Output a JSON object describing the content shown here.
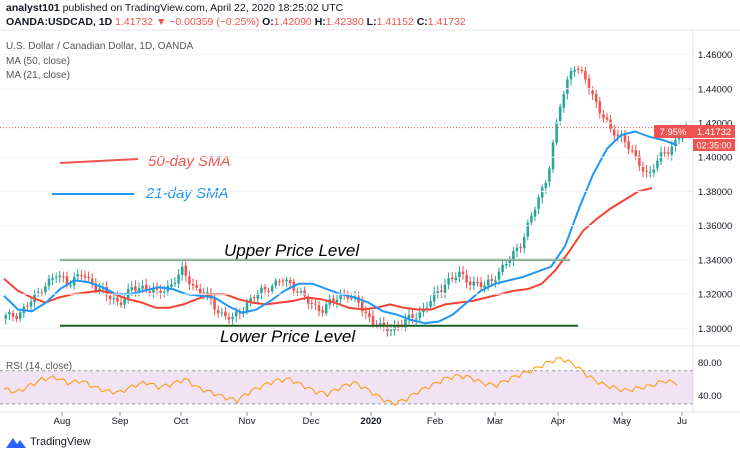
{
  "header": {
    "author": "analyst101",
    "published_text": "published on TradingView.com, April 22, 2020 18:25:02 UTC",
    "symbol": "OANDA:USDCAD, 1D",
    "last": "1.41732",
    "change": "▼ −0.00359 (−0.25%)",
    "open_label": "O:",
    "open": "1.42090",
    "high_label": "H:",
    "high": "1.42380",
    "low_label": "L:",
    "low": "1.41152",
    "close_label": "C:",
    "close": "1.41732"
  },
  "legend": {
    "title": "U.S. Dollar / Canadian Dollar, 1D, OANDA",
    "ma50": "MA (50, close)",
    "ma21": "MA (21, close)",
    "rsi": "RSI (14, close)"
  },
  "annotations": {
    "sma50_label": "50-day SMA",
    "sma21_label": "21-day SMA",
    "upper": "Upper Price Level",
    "lower": "Lower Price Level"
  },
  "price_tags": {
    "percent": "7.95%",
    "price": "1.41732",
    "countdown": "02:35:00"
  },
  "footer": {
    "brand": "TradingView"
  },
  "colors": {
    "up": "#26a69a",
    "down": "#ef5350",
    "sma50": "#f44336",
    "sma21": "#2196f3",
    "rsi_line": "#ff9800",
    "rsi_band": "#e1bee7",
    "level": "#1b5e20"
  },
  "chart_data": {
    "type": "candlestick",
    "title": "U.S. Dollar / Canadian Dollar, 1D, OANDA",
    "x_tick_labels": [
      "Aug",
      "Sep",
      "Oct",
      "Nov",
      "Dec",
      "2020",
      "Feb",
      "Mar",
      "Apr",
      "May",
      "Ju"
    ],
    "y_tick_labels": [
      "1.46000",
      "1.44000",
      "1.42000",
      "1.40000",
      "1.38000",
      "1.36000",
      "1.34000",
      "1.32000",
      "1.30000"
    ],
    "ylim": [
      1.292,
      1.472
    ],
    "close_path": [
      1.3065,
      1.3085,
      1.3155,
      1.325,
      1.3305,
      1.327,
      1.331,
      1.326,
      1.319,
      1.315,
      1.3225,
      1.3245,
      1.32,
      1.325,
      1.333,
      1.324,
      1.3185,
      1.309,
      1.305,
      1.314,
      1.32,
      1.325,
      1.328,
      1.324,
      1.315,
      1.311,
      1.316,
      1.321,
      1.314,
      1.305,
      1.299,
      1.301,
      1.305,
      1.31,
      1.318,
      1.328,
      1.331,
      1.327,
      1.324,
      1.332,
      1.34,
      1.352,
      1.37,
      1.39,
      1.43,
      1.455,
      1.445,
      1.43,
      1.415,
      1.412,
      1.398,
      1.39,
      1.4,
      1.408,
      1.4173
    ],
    "sma50_path": [
      1.329,
      1.322,
      1.318,
      1.315,
      1.318,
      1.32,
      1.321,
      1.322,
      1.32,
      1.317,
      1.315,
      1.312,
      1.312,
      1.314,
      1.317,
      1.32,
      1.32,
      1.317,
      1.315,
      1.314,
      1.315,
      1.316,
      1.318,
      1.317,
      1.315,
      1.312,
      1.311,
      1.312,
      1.314,
      1.312,
      1.311,
      1.311,
      1.314,
      1.315,
      1.316,
      1.318,
      1.32,
      1.322,
      1.323,
      1.326,
      1.334,
      1.345,
      1.357,
      1.364,
      1.37,
      1.375,
      1.38,
      1.382
    ],
    "sma21_path": [
      1.319,
      1.311,
      1.31,
      1.315,
      1.323,
      1.328,
      1.327,
      1.324,
      1.32,
      1.32,
      1.322,
      1.324,
      1.323,
      1.32,
      1.319,
      1.318,
      1.313,
      1.309,
      1.311,
      1.316,
      1.322,
      1.326,
      1.326,
      1.323,
      1.32,
      1.318,
      1.315,
      1.31,
      1.308,
      1.305,
      1.303,
      1.304,
      1.308,
      1.315,
      1.322,
      1.326,
      1.328,
      1.33,
      1.333,
      1.336,
      1.348,
      1.37,
      1.39,
      1.405,
      1.413,
      1.415,
      1.412,
      1.41,
      1.407
    ],
    "upper_level": 1.34,
    "lower_level": 1.3015,
    "rsi": {
      "label": "RSI (14, close)",
      "y_tick_labels": [
        "80.00",
        "40.00"
      ],
      "ylim": [
        25,
        95
      ],
      "bands": [
        70,
        30
      ],
      "path": [
        48,
        44,
        52,
        60,
        62,
        55,
        58,
        50,
        45,
        44,
        52,
        56,
        50,
        54,
        60,
        49,
        44,
        38,
        34,
        45,
        52,
        58,
        60,
        53,
        45,
        42,
        50,
        56,
        48,
        38,
        30,
        35,
        45,
        52,
        60,
        64,
        62,
        55,
        52,
        60,
        66,
        72,
        80,
        85,
        78,
        65,
        55,
        50,
        46,
        49,
        52,
        58,
        55
      ]
    }
  }
}
